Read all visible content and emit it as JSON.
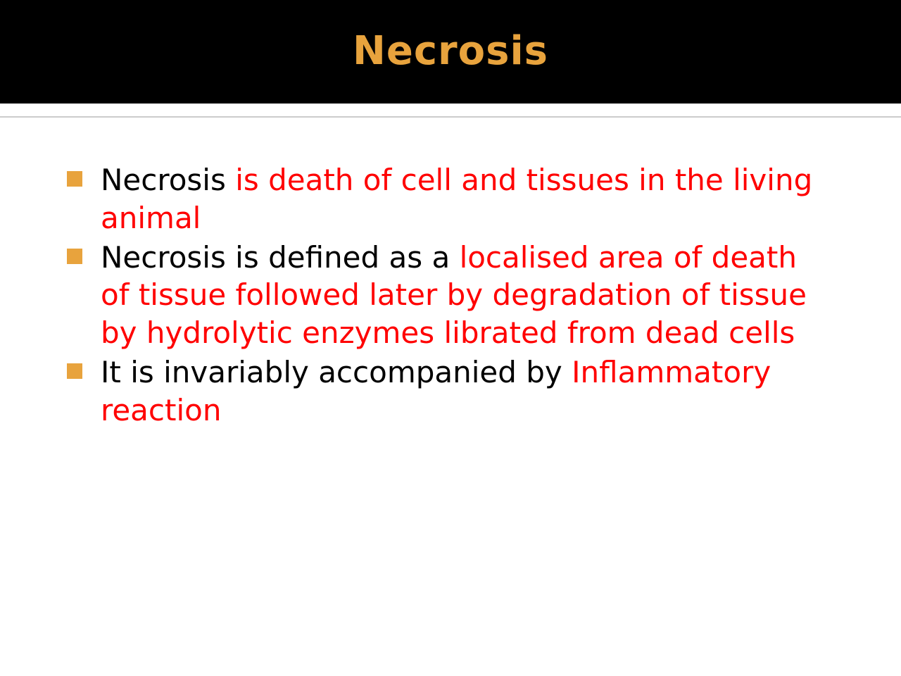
{
  "slide": {
    "title": "Necrosis",
    "title_color": "#e8a33d",
    "title_bg": "#000000",
    "title_fontsize": 56,
    "bullet_color": "#e8a33d",
    "bullet_size": 22,
    "body_fontsize": 42,
    "colors": {
      "black": "#000000",
      "red": "#ff0000",
      "background": "#ffffff",
      "divider": "#cccccc"
    },
    "bullets": [
      {
        "runs": [
          {
            "text": "Necrosis ",
            "color": "black"
          },
          {
            "text": "is death of cell and tissues in the living animal",
            "color": "red"
          }
        ]
      },
      {
        "runs": [
          {
            "text": "Necrosis is defined as a ",
            "color": "black"
          },
          {
            "text": "localised area of death of tissue followed later by degradation of tissue by hydrolytic enzymes librated from dead cells",
            "color": "red"
          }
        ]
      },
      {
        "runs": [
          {
            "text": "It is invariably accompanied by ",
            "color": "black"
          },
          {
            "text": "Inflammatory reaction",
            "color": "red"
          }
        ]
      }
    ]
  }
}
